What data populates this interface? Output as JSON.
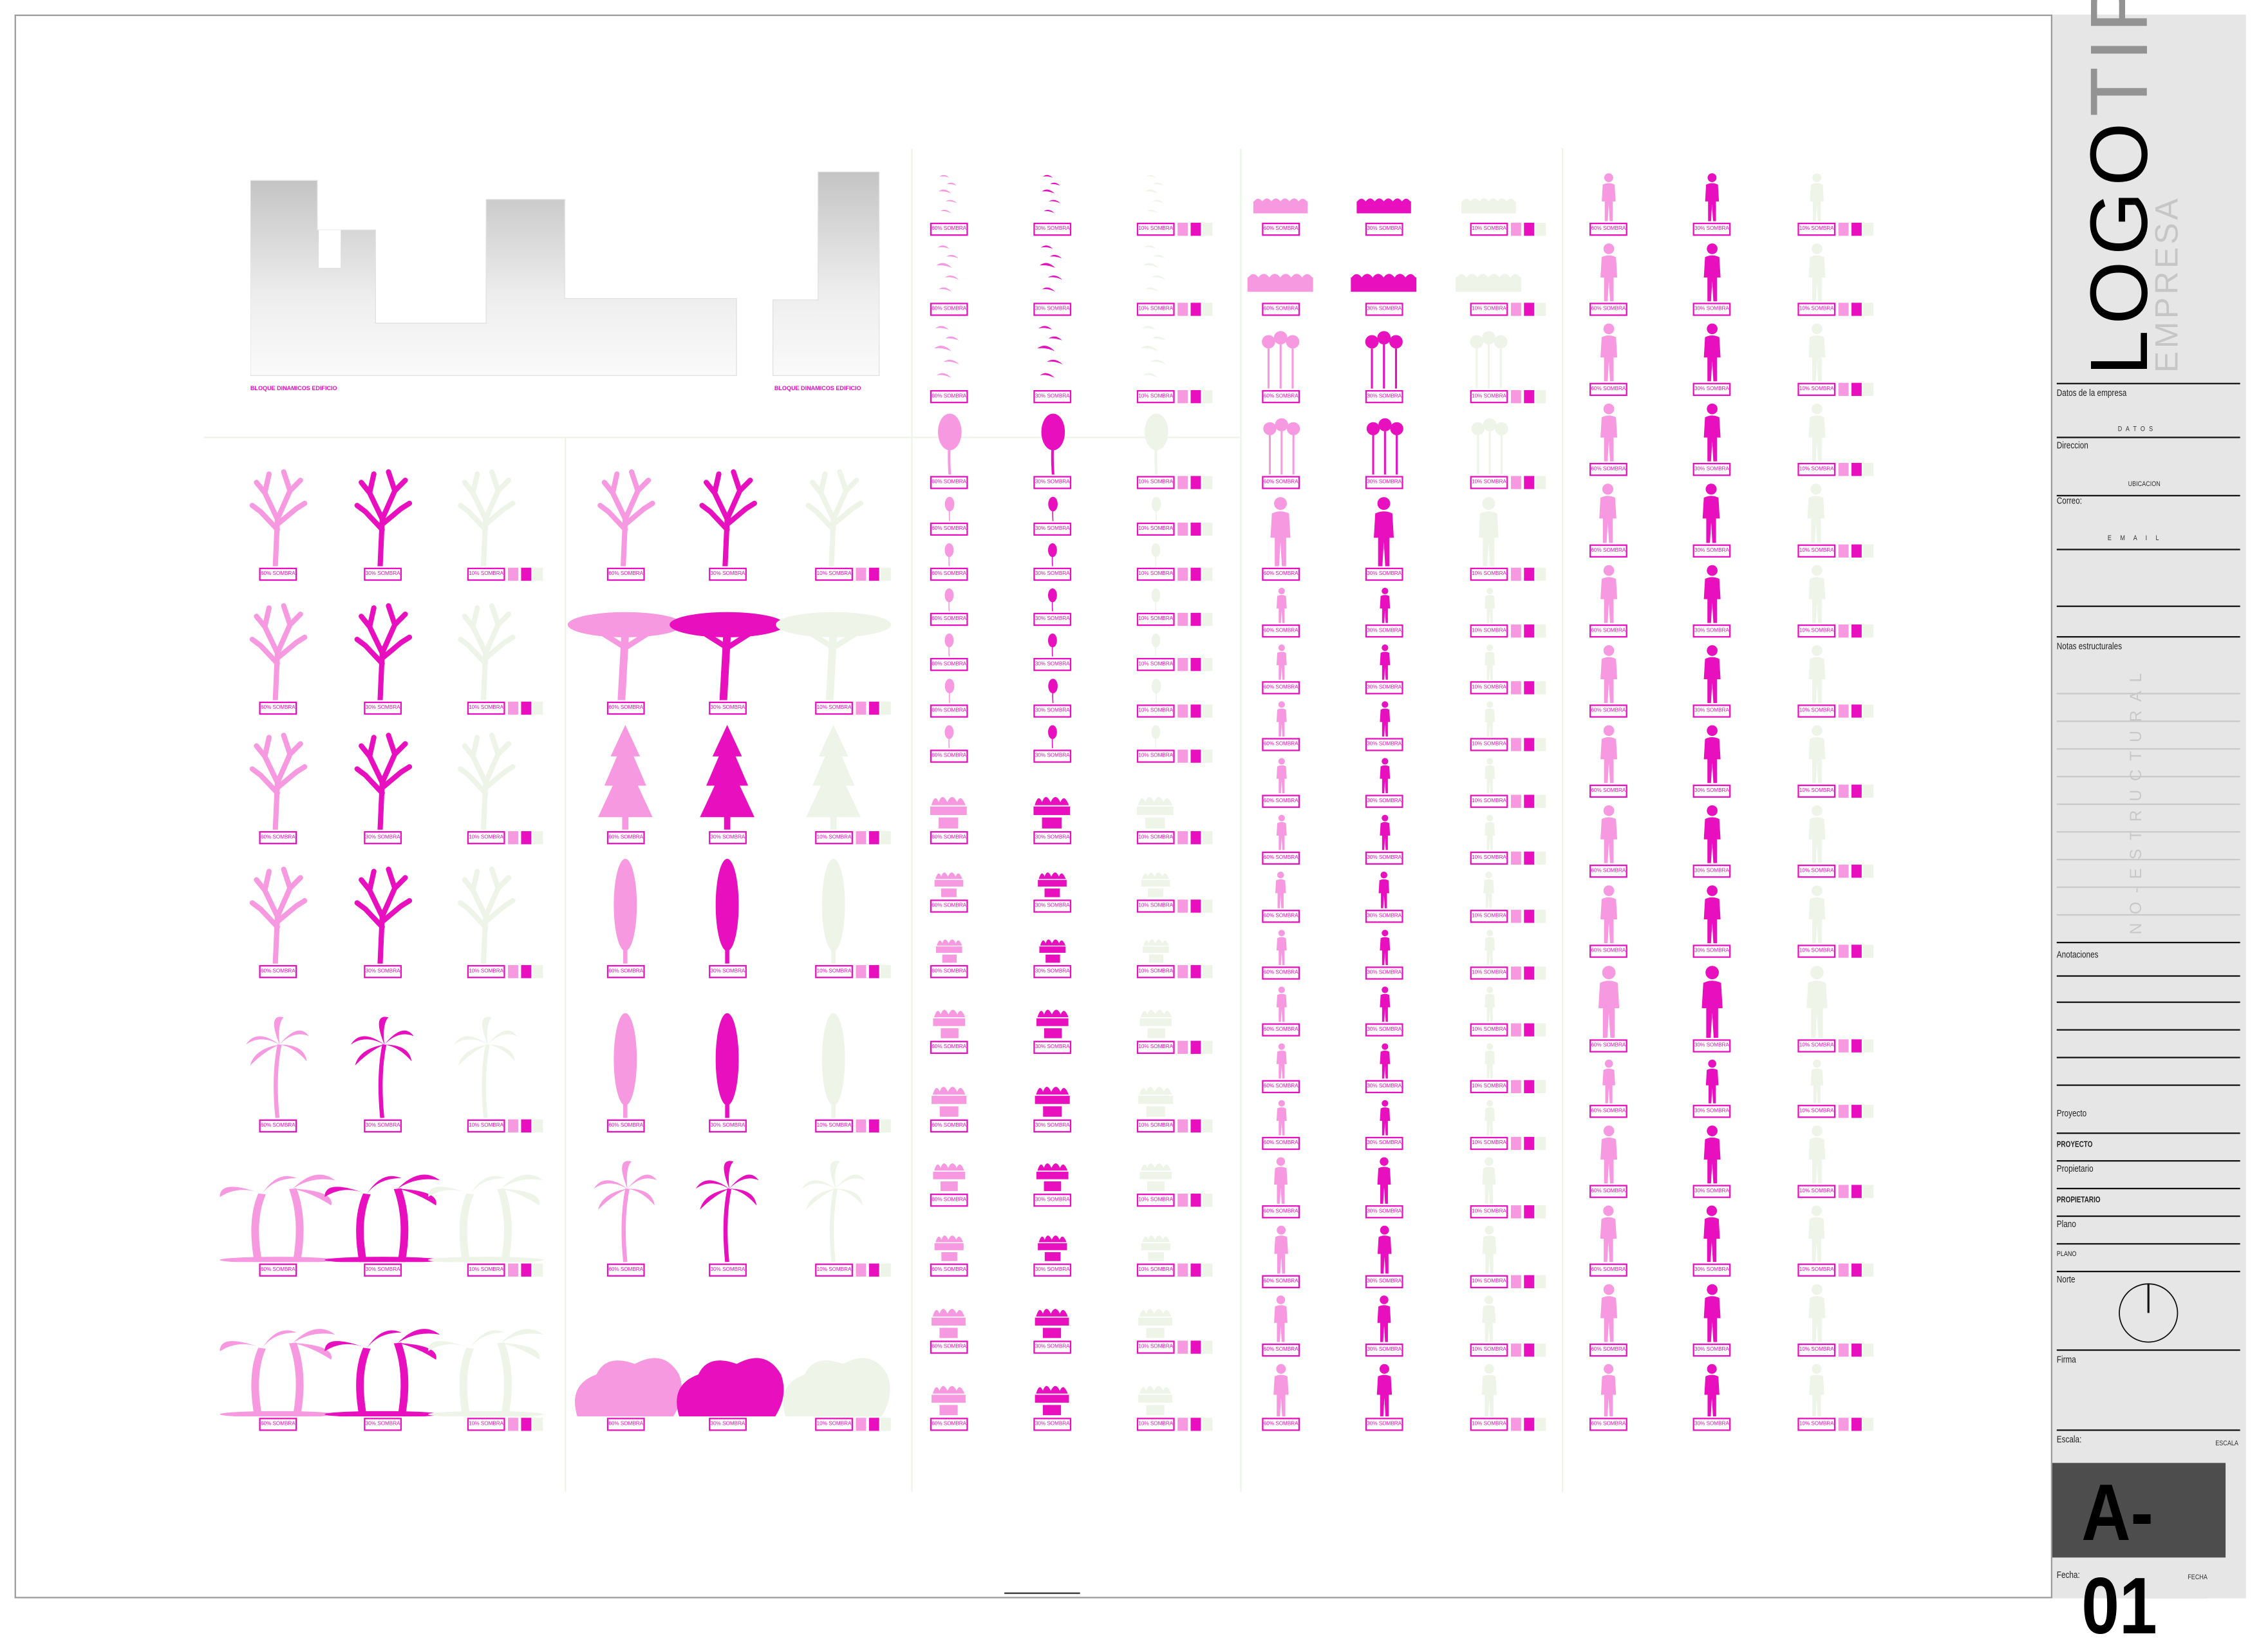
{
  "colors": {
    "shade_60": "#f799e0",
    "shade_30": "#e80fbf",
    "shade_10": "#eef4e8",
    "accent": "#e80fbf",
    "titleblock_bg": "#e6e6e6",
    "sheet_box": "#4d4d4d"
  },
  "shade_labels": [
    "60% SOMBRA",
    "30% SOMBRA",
    "10% SOMBRA"
  ],
  "buildings": {
    "label_left": "BLOQUE DINAMICOS EDIFICIO",
    "label_right": "BLOQUE DINAMICOS EDIFICIO"
  },
  "groups": [
    {
      "name": "trees-1",
      "rows": [
        "bare-tree-icon",
        "bare-tree-icon",
        "bare-tree-icon",
        "bare-tree-icon",
        "palm-icon",
        "palm-group-icon",
        "palm-group-icon"
      ]
    },
    {
      "name": "trees-2",
      "rows": [
        "bare-tree-icon",
        "umbrella-tree-icon",
        "conifer-icon",
        "cypress-icon",
        "cypress-icon",
        "palm-icon",
        "shrub-icon"
      ]
    },
    {
      "name": "plants",
      "rows": [
        "birds-icon",
        "birds-icon",
        "birds-icon",
        "plant-icon",
        "plant-icon",
        "plant-icon",
        "plant-icon",
        "plant-icon",
        "plant-icon",
        "plant-icon",
        "planter-icon",
        "planter-icon",
        "planter-icon",
        "planter-icon",
        "planter-icon",
        "planter-icon",
        "planter-icon",
        "planter-icon",
        "planter-icon"
      ]
    },
    {
      "name": "people-1",
      "rows": [
        "hedge-icon",
        "hedge-icon",
        "flower-icon",
        "flower-icon",
        "person-icon",
        "person-icon",
        "person-icon",
        "person-icon",
        "person-icon",
        "person-icon",
        "person-icon",
        "person-icon",
        "person-icon",
        "person-icon",
        "person-icon",
        "person-icon",
        "person-icon",
        "person-icon",
        "person-icon"
      ]
    },
    {
      "name": "people-2",
      "rows": [
        "person-icon",
        "person-icon",
        "person-icon",
        "person-icon",
        "person-icon",
        "person-icon",
        "person-icon",
        "person-icon",
        "person-icon",
        "person-icon",
        "person-icon",
        "person-icon",
        "person-icon",
        "person-icon",
        "person-icon",
        "person-icon"
      ]
    }
  ],
  "titleblock": {
    "logo_a": "LOGO",
    "logo_b": "TIPO",
    "empresa": "EMPRESA",
    "datos_label": "Datos de la empresa",
    "datos_value": "D A T O S",
    "direccion_label": "Direccion",
    "direccion_value": "UBICACION",
    "correo_label": "Correo:",
    "correo_value": "E M A I L",
    "notas_label": "Notas estructurales",
    "notas_watermark": "NO-ESTRUCTURAL",
    "anotaciones_label": "Anotaciones",
    "proyecto_label": "Proyecto",
    "proyecto_value": "PROYECTO",
    "propietario_label": "Propietario",
    "propietario_value": "PROPIETARIO",
    "plano_label": "Plano",
    "plano_value": "PLANO",
    "norte_label": "Norte",
    "firma_label": "Firma",
    "escala_label": "Escala:",
    "escala_value": "ESCALA",
    "sheet": "A-01",
    "fecha_label": "Fecha:",
    "fecha_value": "FECHA"
  }
}
